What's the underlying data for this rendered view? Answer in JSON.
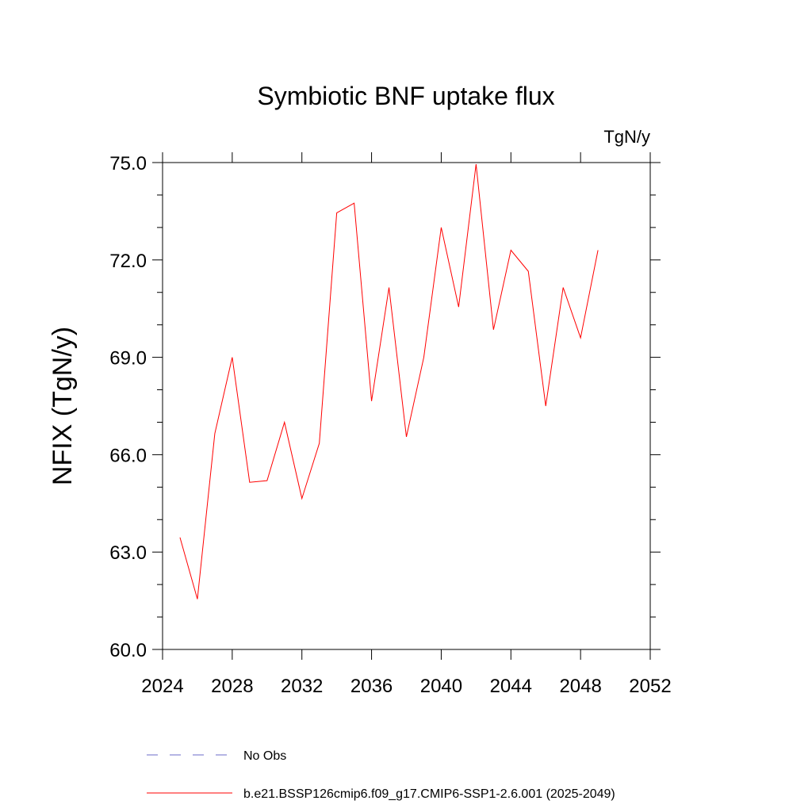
{
  "chart_data": {
    "type": "line",
    "title": "Symbiotic BNF uptake flux",
    "units": "TgN/y",
    "ylabel": "NFIX  (TgN/y)",
    "xlabel": "",
    "xlim": [
      2024,
      2052
    ],
    "ylim": [
      60.0,
      75.0
    ],
    "x_ticks": [
      "2024",
      "2028",
      "2032",
      "2036",
      "2040",
      "2044",
      "2048",
      "2052"
    ],
    "y_ticks": [
      "60.0",
      "63.0",
      "66.0",
      "69.0",
      "72.0",
      "75.0"
    ],
    "series": [
      {
        "name": "b.e21.BSSP126cmip6.f09_g17.CMIP6-SSP1-2.6.001 (2025-2049)",
        "color": "#ff0000",
        "style": "solid",
        "x": [
          2025,
          2026,
          2027,
          2028,
          2029,
          2030,
          2031,
          2032,
          2033,
          2034,
          2035,
          2036,
          2037,
          2038,
          2039,
          2040,
          2041,
          2042,
          2043,
          2044,
          2045,
          2046,
          2047,
          2048,
          2049
        ],
        "values": [
          63.45,
          61.55,
          66.65,
          69.0,
          65.15,
          65.2,
          67.0,
          64.65,
          66.35,
          73.45,
          73.75,
          67.65,
          71.15,
          66.55,
          69.0,
          73.0,
          70.55,
          74.95,
          69.85,
          72.3,
          71.65,
          67.5,
          71.15,
          69.6,
          72.3
        ]
      }
    ],
    "legend": [
      {
        "label": "No Obs",
        "color": "#6b6bc8",
        "style": "dashed"
      },
      {
        "label": "b.e21.BSSP126cmip6.f09_g17.CMIP6-SSP1-2.6.001 (2025-2049)",
        "color": "#ff0000",
        "style": "solid"
      }
    ],
    "legend_position": "bottom"
  }
}
